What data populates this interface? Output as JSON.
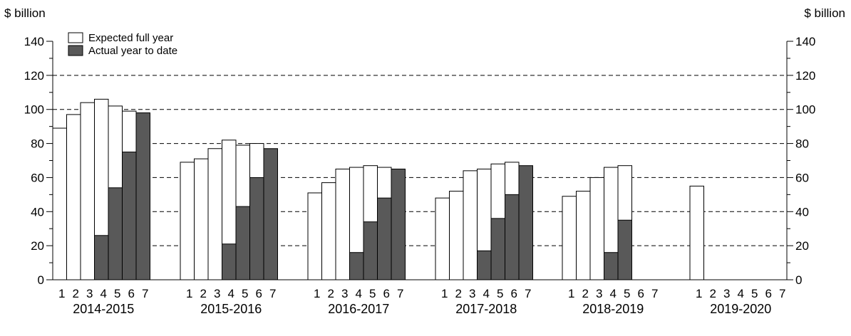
{
  "chart_data": {
    "type": "bar",
    "y_unit_left": "$ billion",
    "y_unit_right": "$ billion",
    "ylim": [
      0,
      140
    ],
    "yticks": [
      0,
      20,
      40,
      60,
      80,
      100,
      120,
      140
    ],
    "dashed_gridlines": [
      20,
      40,
      60,
      80,
      100,
      120
    ],
    "legend": {
      "position": "top-left",
      "expected_label": "Expected full year",
      "actual_label": "Actual year to date"
    },
    "colors": {
      "expected": "#ffffff",
      "actual": "#595959",
      "outline": "#000000"
    },
    "sub_labels": [
      "1",
      "2",
      "3",
      "4",
      "5",
      "6",
      "7"
    ],
    "groups": [
      {
        "label": "2014-2015",
        "expected": [
          89,
          97,
          104,
          106,
          102,
          99,
          null
        ],
        "actual": [
          null,
          null,
          null,
          26,
          54,
          75,
          98
        ]
      },
      {
        "label": "2015-2016",
        "expected": [
          69,
          71,
          77,
          82,
          79,
          80,
          null
        ],
        "actual": [
          null,
          null,
          null,
          21,
          43,
          60,
          77
        ]
      },
      {
        "label": "2016-2017",
        "expected": [
          51,
          57,
          65,
          66,
          67,
          66,
          null
        ],
        "actual": [
          null,
          null,
          null,
          16,
          34,
          48,
          65
        ]
      },
      {
        "label": "2017-2018",
        "expected": [
          48,
          52,
          64,
          65,
          68,
          69,
          null
        ],
        "actual": [
          null,
          null,
          null,
          17,
          36,
          50,
          67
        ]
      },
      {
        "label": "2018-2019",
        "expected": [
          49,
          52,
          60,
          66,
          67,
          null,
          null
        ],
        "actual": [
          null,
          null,
          null,
          16,
          35,
          null,
          null
        ]
      },
      {
        "label": "2019-2020",
        "expected": [
          55,
          null,
          null,
          null,
          null,
          null,
          null
        ],
        "actual": [
          null,
          null,
          null,
          null,
          null,
          null,
          null
        ]
      }
    ]
  }
}
